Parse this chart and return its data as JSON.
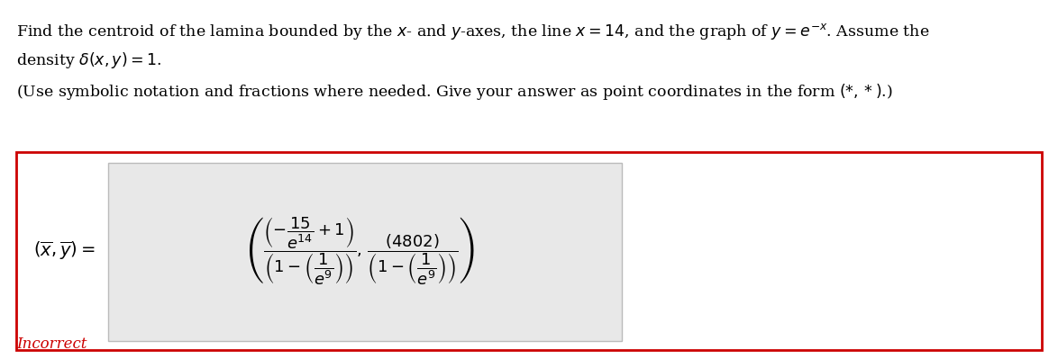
{
  "title_line1": "Find the centroid of the lamina bounded by the $x$- and $y$-axes, the line $x = 14$, and the graph of $y = e^{-x}$. Assume the",
  "title_line2": "density $\\delta(x, y) = 1$.",
  "subtitle": "(Use symbolic notation and fractions where needed. Give your answer as point coordinates in the form $(*, *)$.)",
  "label": "$(\\overline{x}, \\overline{y}) =$",
  "formula": "$\\left(\\dfrac{\\left(-\\dfrac{15}{e^{14}}+1\\right)}{\\left(1-\\left(\\dfrac{1}{e^{9}}\\right)\\right)},\\,\\dfrac{(4802)}{\\left(1-\\left(\\dfrac{1}{e^{9}}\\right)\\right)}\\right)$",
  "incorrect_text": "Incorrect",
  "incorrect_color": "#cc0000",
  "box_border_color": "#cc0000",
  "inner_box_bg": "#e8e8e8",
  "background_color": "#ffffff",
  "text_color": "#000000",
  "title_fontsize": 12.5,
  "label_fontsize": 14,
  "formula_fontsize": 13,
  "incorrect_fontsize": 12
}
